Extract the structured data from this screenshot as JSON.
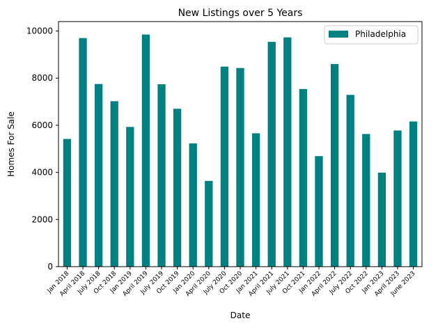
{
  "chart_data": {
    "type": "bar",
    "title": "New Listings over 5 Years",
    "xlabel": "Date",
    "ylabel": "Homes For Sale",
    "categories": [
      "Jan 2018",
      "April 2018",
      "July 2018",
      "Oct 2018",
      "Jan 2019",
      "April 2019",
      "July 2019",
      "Oct 2019",
      "Jan 2020",
      "April 2020",
      "July 2020",
      "Oct 2020",
      "Jan 2021",
      "April 2021",
      "July 2021",
      "Oct 2021",
      "Jan 2022",
      "April 2022",
      "July 2022",
      "Oct 2022",
      "Jan 2023",
      "April 2023",
      "June 2023"
    ],
    "series": [
      {
        "name": "Philadelphia",
        "color": "#008080",
        "values": [
          5420,
          9700,
          7750,
          7020,
          5930,
          9850,
          7740,
          6700,
          5230,
          3640,
          8490,
          8430,
          5660,
          9540,
          9730,
          7540,
          4690,
          8600,
          7290,
          5630,
          3990,
          5780,
          6160
        ]
      }
    ],
    "ylim": [
      0,
      10400
    ],
    "yticks": [
      0,
      2000,
      4000,
      6000,
      8000,
      10000
    ],
    "legend_position": "top-right",
    "grid": false
  }
}
